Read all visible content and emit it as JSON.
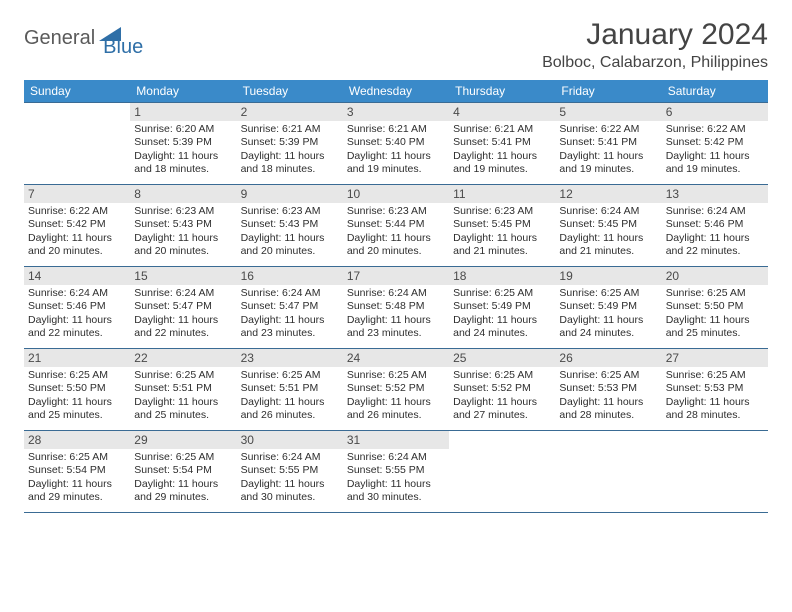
{
  "brand": {
    "part1": "General",
    "part2": "Blue"
  },
  "title": "January 2024",
  "location": "Bolboc, Calabarzon, Philippines",
  "colors": {
    "header_bg": "#3a8ac9",
    "header_text": "#ffffff",
    "daynum_bg": "#e7e7e7",
    "border": "#3a6b94",
    "brand_gray": "#5a5a5a",
    "brand_blue": "#2f6fa7"
  },
  "weekdays": [
    "Sunday",
    "Monday",
    "Tuesday",
    "Wednesday",
    "Thursday",
    "Friday",
    "Saturday"
  ],
  "weeks": [
    [
      {
        "n": "",
        "sunrise": "",
        "sunset": "",
        "daylight": ""
      },
      {
        "n": "1",
        "sunrise": "Sunrise: 6:20 AM",
        "sunset": "Sunset: 5:39 PM",
        "daylight": "Daylight: 11 hours and 18 minutes."
      },
      {
        "n": "2",
        "sunrise": "Sunrise: 6:21 AM",
        "sunset": "Sunset: 5:39 PM",
        "daylight": "Daylight: 11 hours and 18 minutes."
      },
      {
        "n": "3",
        "sunrise": "Sunrise: 6:21 AM",
        "sunset": "Sunset: 5:40 PM",
        "daylight": "Daylight: 11 hours and 19 minutes."
      },
      {
        "n": "4",
        "sunrise": "Sunrise: 6:21 AM",
        "sunset": "Sunset: 5:41 PM",
        "daylight": "Daylight: 11 hours and 19 minutes."
      },
      {
        "n": "5",
        "sunrise": "Sunrise: 6:22 AM",
        "sunset": "Sunset: 5:41 PM",
        "daylight": "Daylight: 11 hours and 19 minutes."
      },
      {
        "n": "6",
        "sunrise": "Sunrise: 6:22 AM",
        "sunset": "Sunset: 5:42 PM",
        "daylight": "Daylight: 11 hours and 19 minutes."
      }
    ],
    [
      {
        "n": "7",
        "sunrise": "Sunrise: 6:22 AM",
        "sunset": "Sunset: 5:42 PM",
        "daylight": "Daylight: 11 hours and 20 minutes."
      },
      {
        "n": "8",
        "sunrise": "Sunrise: 6:23 AM",
        "sunset": "Sunset: 5:43 PM",
        "daylight": "Daylight: 11 hours and 20 minutes."
      },
      {
        "n": "9",
        "sunrise": "Sunrise: 6:23 AM",
        "sunset": "Sunset: 5:43 PM",
        "daylight": "Daylight: 11 hours and 20 minutes."
      },
      {
        "n": "10",
        "sunrise": "Sunrise: 6:23 AM",
        "sunset": "Sunset: 5:44 PM",
        "daylight": "Daylight: 11 hours and 20 minutes."
      },
      {
        "n": "11",
        "sunrise": "Sunrise: 6:23 AM",
        "sunset": "Sunset: 5:45 PM",
        "daylight": "Daylight: 11 hours and 21 minutes."
      },
      {
        "n": "12",
        "sunrise": "Sunrise: 6:24 AM",
        "sunset": "Sunset: 5:45 PM",
        "daylight": "Daylight: 11 hours and 21 minutes."
      },
      {
        "n": "13",
        "sunrise": "Sunrise: 6:24 AM",
        "sunset": "Sunset: 5:46 PM",
        "daylight": "Daylight: 11 hours and 22 minutes."
      }
    ],
    [
      {
        "n": "14",
        "sunrise": "Sunrise: 6:24 AM",
        "sunset": "Sunset: 5:46 PM",
        "daylight": "Daylight: 11 hours and 22 minutes."
      },
      {
        "n": "15",
        "sunrise": "Sunrise: 6:24 AM",
        "sunset": "Sunset: 5:47 PM",
        "daylight": "Daylight: 11 hours and 22 minutes."
      },
      {
        "n": "16",
        "sunrise": "Sunrise: 6:24 AM",
        "sunset": "Sunset: 5:47 PM",
        "daylight": "Daylight: 11 hours and 23 minutes."
      },
      {
        "n": "17",
        "sunrise": "Sunrise: 6:24 AM",
        "sunset": "Sunset: 5:48 PM",
        "daylight": "Daylight: 11 hours and 23 minutes."
      },
      {
        "n": "18",
        "sunrise": "Sunrise: 6:25 AM",
        "sunset": "Sunset: 5:49 PM",
        "daylight": "Daylight: 11 hours and 24 minutes."
      },
      {
        "n": "19",
        "sunrise": "Sunrise: 6:25 AM",
        "sunset": "Sunset: 5:49 PM",
        "daylight": "Daylight: 11 hours and 24 minutes."
      },
      {
        "n": "20",
        "sunrise": "Sunrise: 6:25 AM",
        "sunset": "Sunset: 5:50 PM",
        "daylight": "Daylight: 11 hours and 25 minutes."
      }
    ],
    [
      {
        "n": "21",
        "sunrise": "Sunrise: 6:25 AM",
        "sunset": "Sunset: 5:50 PM",
        "daylight": "Daylight: 11 hours and 25 minutes."
      },
      {
        "n": "22",
        "sunrise": "Sunrise: 6:25 AM",
        "sunset": "Sunset: 5:51 PM",
        "daylight": "Daylight: 11 hours and 25 minutes."
      },
      {
        "n": "23",
        "sunrise": "Sunrise: 6:25 AM",
        "sunset": "Sunset: 5:51 PM",
        "daylight": "Daylight: 11 hours and 26 minutes."
      },
      {
        "n": "24",
        "sunrise": "Sunrise: 6:25 AM",
        "sunset": "Sunset: 5:52 PM",
        "daylight": "Daylight: 11 hours and 26 minutes."
      },
      {
        "n": "25",
        "sunrise": "Sunrise: 6:25 AM",
        "sunset": "Sunset: 5:52 PM",
        "daylight": "Daylight: 11 hours and 27 minutes."
      },
      {
        "n": "26",
        "sunrise": "Sunrise: 6:25 AM",
        "sunset": "Sunset: 5:53 PM",
        "daylight": "Daylight: 11 hours and 28 minutes."
      },
      {
        "n": "27",
        "sunrise": "Sunrise: 6:25 AM",
        "sunset": "Sunset: 5:53 PM",
        "daylight": "Daylight: 11 hours and 28 minutes."
      }
    ],
    [
      {
        "n": "28",
        "sunrise": "Sunrise: 6:25 AM",
        "sunset": "Sunset: 5:54 PM",
        "daylight": "Daylight: 11 hours and 29 minutes."
      },
      {
        "n": "29",
        "sunrise": "Sunrise: 6:25 AM",
        "sunset": "Sunset: 5:54 PM",
        "daylight": "Daylight: 11 hours and 29 minutes."
      },
      {
        "n": "30",
        "sunrise": "Sunrise: 6:24 AM",
        "sunset": "Sunset: 5:55 PM",
        "daylight": "Daylight: 11 hours and 30 minutes."
      },
      {
        "n": "31",
        "sunrise": "Sunrise: 6:24 AM",
        "sunset": "Sunset: 5:55 PM",
        "daylight": "Daylight: 11 hours and 30 minutes."
      },
      {
        "n": "",
        "sunrise": "",
        "sunset": "",
        "daylight": ""
      },
      {
        "n": "",
        "sunrise": "",
        "sunset": "",
        "daylight": ""
      },
      {
        "n": "",
        "sunrise": "",
        "sunset": "",
        "daylight": ""
      }
    ]
  ]
}
